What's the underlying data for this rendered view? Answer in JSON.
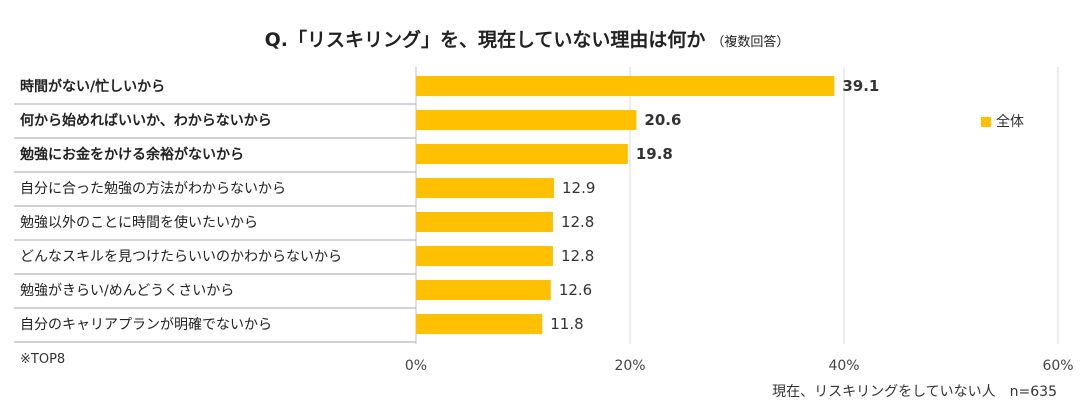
{
  "chart_data": {
    "type": "bar",
    "orientation": "horizontal",
    "title": "Q.「リスキリング」を、現在していない理由は何か",
    "title_note": "（複数回答）",
    "categories": [
      "時間がない/忙しいから",
      "何から始めればいいか、わからないから",
      "勉強にお金をかける余裕がないから",
      "自分に合った勉強の方法がわからないから",
      "勉強以外のことに時間を使いたいから",
      "どんなスキルを見つけたらいいのかわからないから",
      "勉強がきらい/めんどうくさいから",
      "自分のキャリアプランが明確でないから"
    ],
    "emphasized": [
      true,
      true,
      true,
      false,
      false,
      false,
      false,
      false
    ],
    "series": [
      {
        "name": "全体",
        "values": [
          39.1,
          20.6,
          19.8,
          12.9,
          12.8,
          12.8,
          12.6,
          11.8
        ],
        "color": "#FFC000"
      }
    ],
    "value_labels": [
      "39.1",
      "20.6",
      "19.8",
      "12.9",
      "12.8",
      "12.8",
      "12.6",
      "11.8"
    ],
    "xlim": [
      0,
      60
    ],
    "xticks": [
      0,
      20,
      40,
      60
    ],
    "xtick_labels": [
      "0%",
      "20%",
      "40%",
      "60%"
    ],
    "grid": true,
    "legend_position": "right",
    "note_left": "※TOP8",
    "note_right": "現在、リスキリングをしていない人　n=635"
  }
}
